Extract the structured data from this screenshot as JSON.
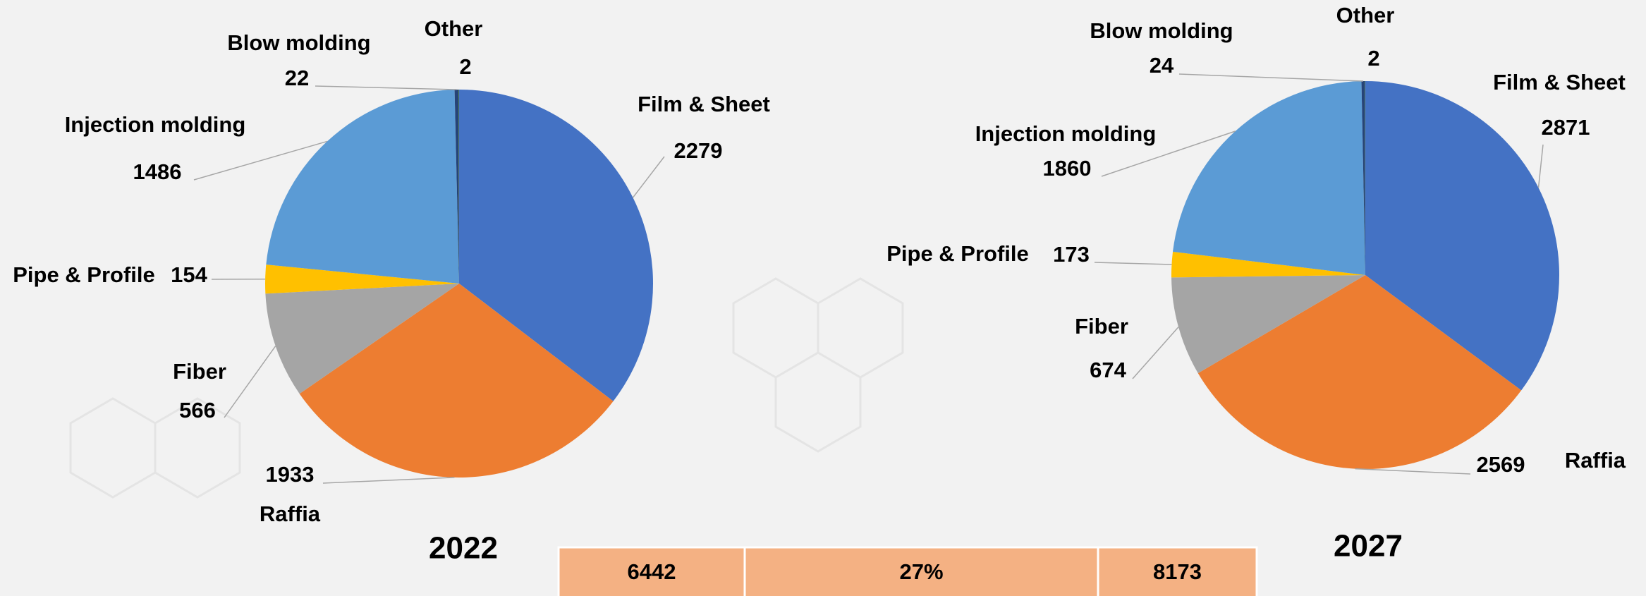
{
  "chart_data": [
    {
      "type": "pie",
      "title": "2022",
      "categories": [
        "Film & Sheet",
        "Raffia",
        "Fiber",
        "Pipe & Profile",
        "Injection molding",
        "Blow molding",
        "Other"
      ],
      "values": [
        2279,
        1933,
        566,
        154,
        1486,
        22,
        2
      ],
      "colors": [
        "#4472c4",
        "#ed7d31",
        "#a5a5a5",
        "#ffc000",
        "#5b9bd5",
        "#264478",
        "#70ad47"
      ]
    },
    {
      "type": "pie",
      "title": "2027",
      "categories": [
        "Film & Sheet",
        "Raffia",
        "Fiber",
        "Pipe & Profile",
        "Injection molding",
        "Blow molding",
        "Other"
      ],
      "values": [
        2871,
        2569,
        674,
        173,
        1860,
        24,
        2
      ],
      "colors": [
        "#4472c4",
        "#ed7d31",
        "#a5a5a5",
        "#ffc000",
        "#5b9bd5",
        "#264478",
        "#70ad47"
      ]
    }
  ],
  "table": {
    "cells": [
      "6442",
      "27%",
      "8173"
    ]
  }
}
